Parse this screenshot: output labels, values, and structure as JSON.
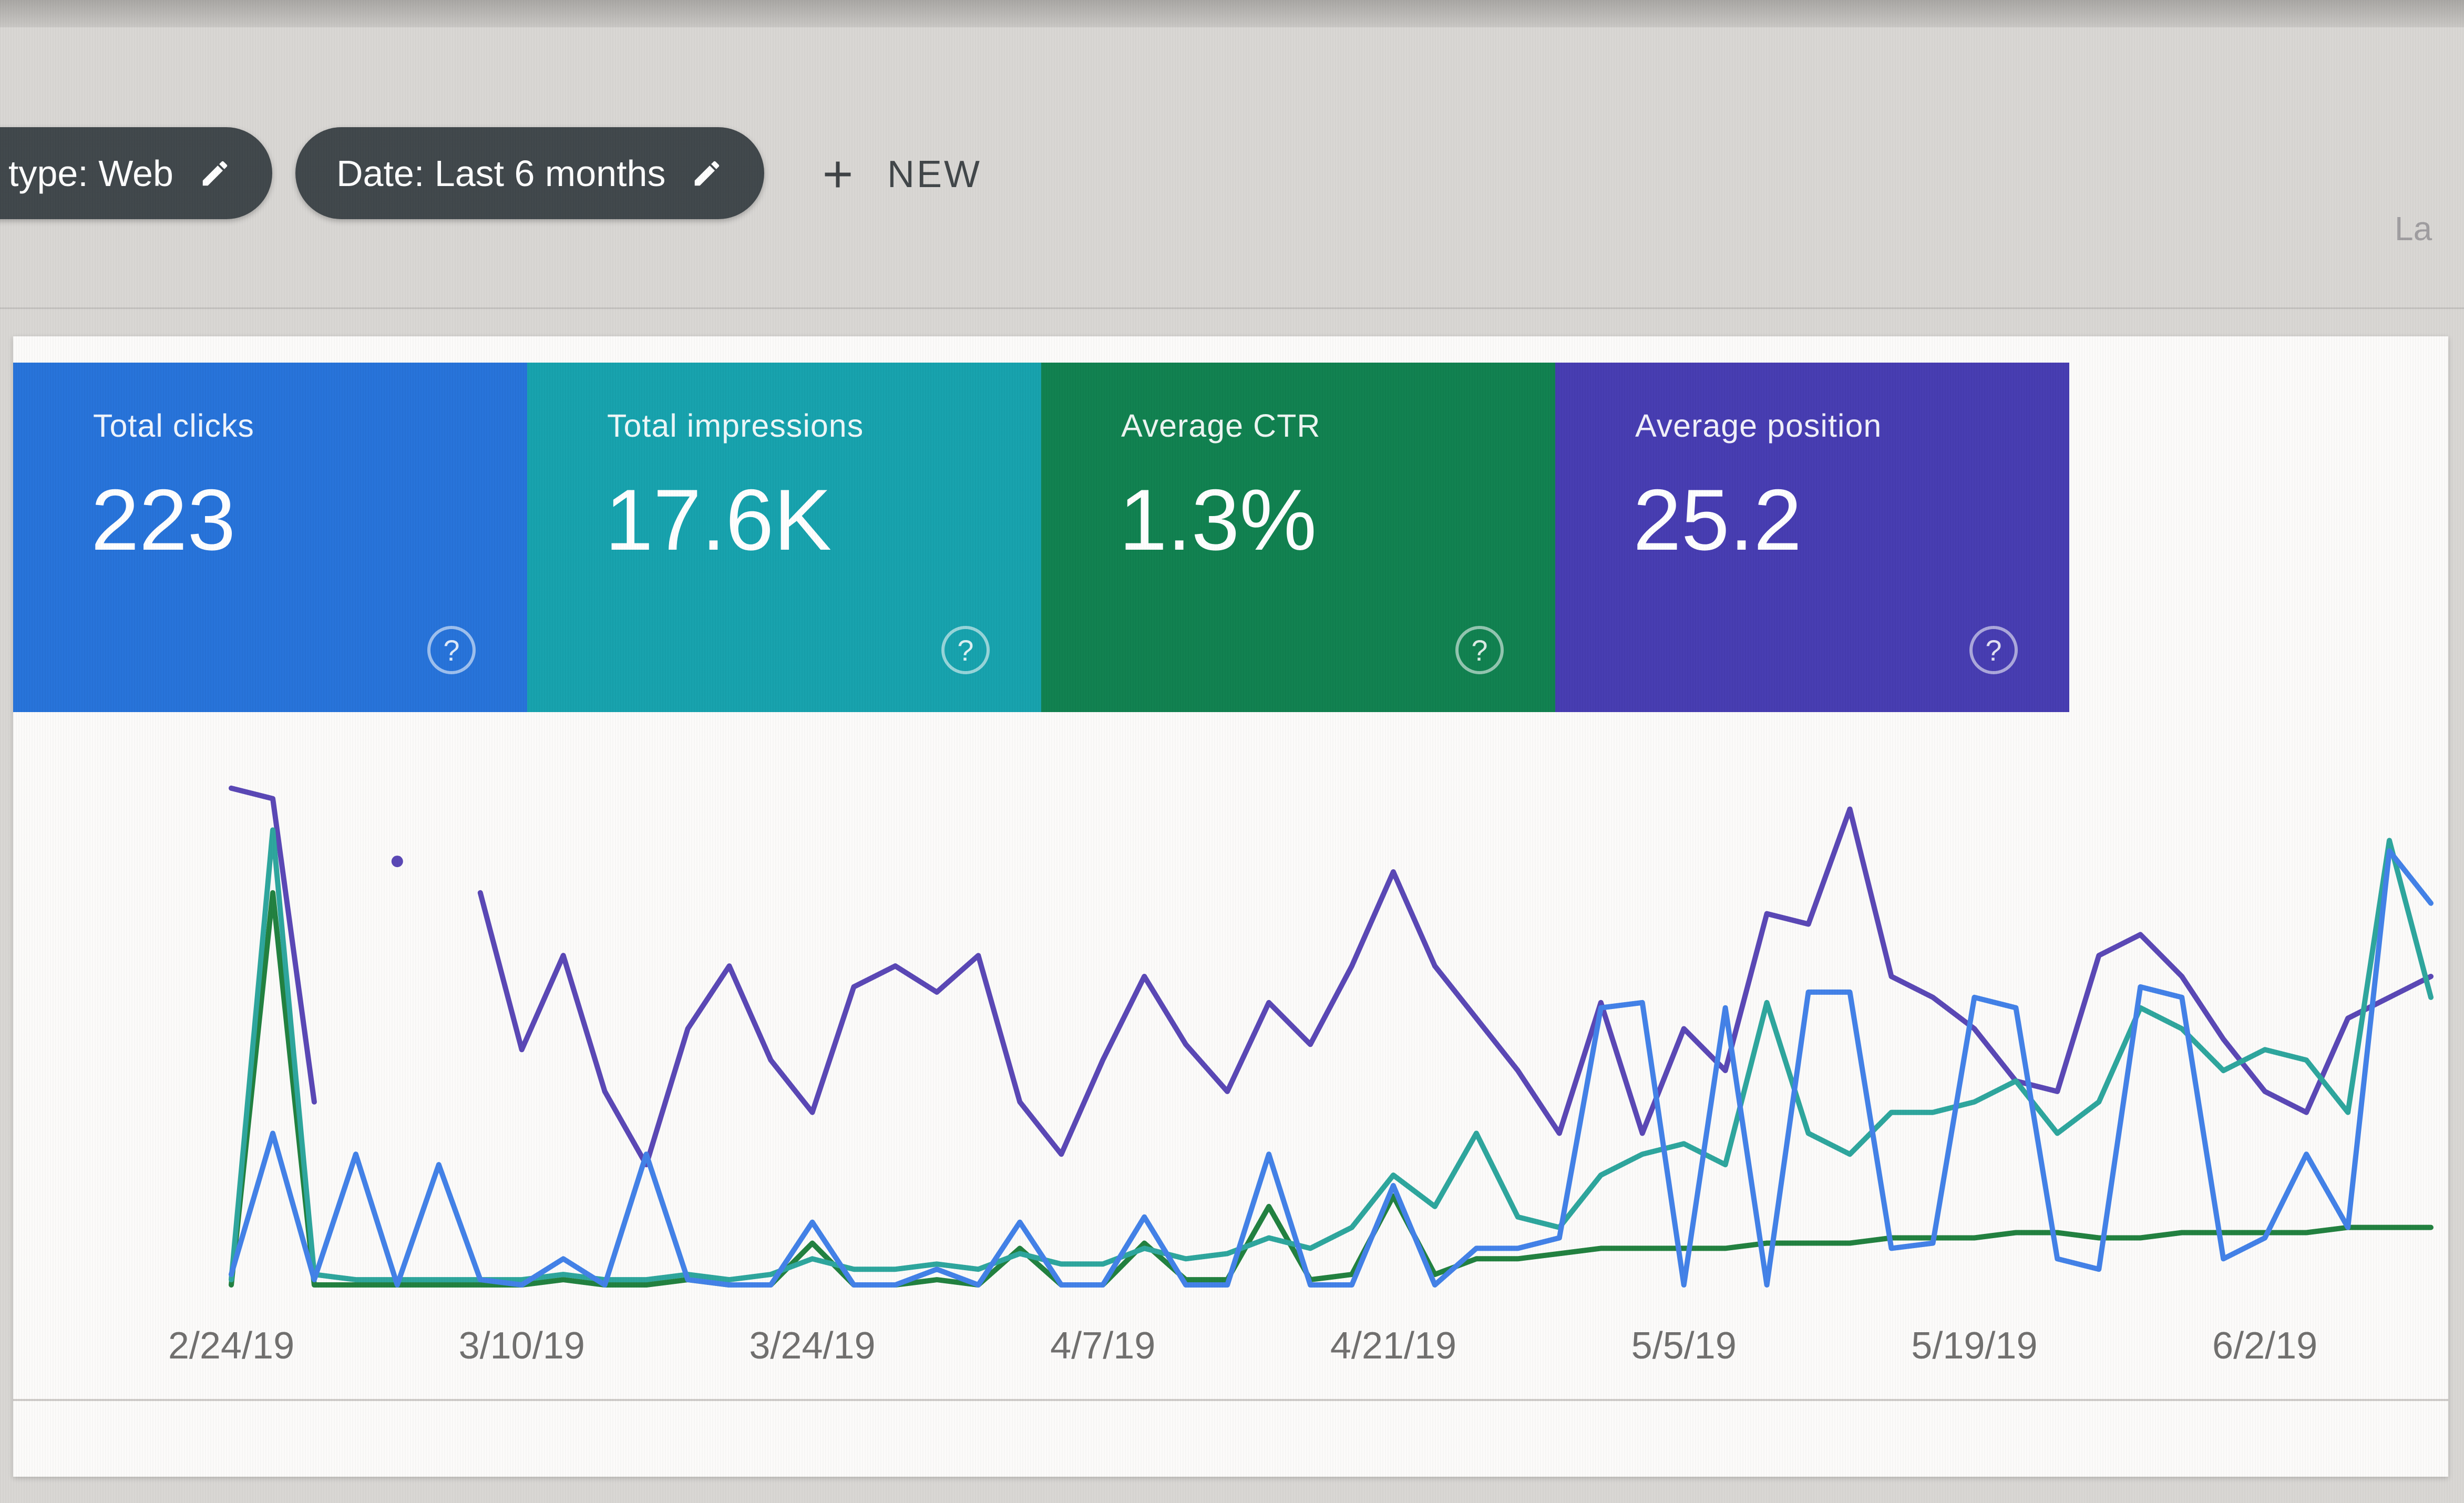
{
  "window": {
    "top_right_clipped_text": "La"
  },
  "filters": {
    "search_type_chip": {
      "label": "type: Web"
    },
    "date_chip": {
      "label": "Date: Last 6 months"
    },
    "new_button": {
      "label": "NEW"
    }
  },
  "help_icon_glyph": "?",
  "scorecards": [
    {
      "label": "Total clicks",
      "value": "223",
      "color": "#2471d9"
    },
    {
      "label": "Total impressions",
      "value": "17.6K",
      "color": "#14a1ac"
    },
    {
      "label": "Average CTR",
      "value": "1.3%",
      "color": "#0d7f4e"
    },
    {
      "label": "Average position",
      "value": "25.2",
      "color": "#443ab0"
    }
  ],
  "chart_data": {
    "type": "line",
    "title": "",
    "xlabel": "",
    "ylabel": "",
    "grid": false,
    "legend_position": "none",
    "y_axis_note": "no visible y-axis labels; series values given as plotted height in % of chart height",
    "x_start_label": "2/24/19",
    "x_tick_labels": [
      "2/24/19",
      "3/10/19",
      "3/24/19",
      "4/7/19",
      "4/21/19",
      "5/5/19",
      "5/19/19",
      "6/2/19"
    ],
    "x_tick_indices": [
      0,
      7,
      14,
      21,
      28,
      35,
      42,
      49
    ],
    "points_per_series": 54,
    "series": [
      {
        "name": "Average position",
        "color": "#5845b5",
        "plotted_heights_pct": [
          96,
          94,
          36,
          null,
          82,
          null,
          76,
          46,
          64,
          38,
          24,
          50,
          62,
          44,
          34,
          58,
          62,
          57,
          64,
          36,
          26,
          44,
          60,
          47,
          38,
          55,
          47,
          62,
          80,
          62,
          52,
          42,
          30,
          55,
          30,
          50,
          42,
          72,
          70,
          92,
          60,
          56,
          50,
          40,
          38,
          64,
          68,
          60,
          48,
          38,
          34,
          52,
          56,
          60
        ]
      },
      {
        "name": "Average CTR",
        "color": "#1f7f3d",
        "plotted_heights_pct": [
          1,
          76,
          1,
          1,
          1,
          1,
          1,
          1,
          2,
          1,
          1,
          2,
          1,
          1,
          9,
          1,
          1,
          2,
          1,
          8,
          1,
          1,
          9,
          2,
          2,
          16,
          2,
          3,
          18,
          3,
          6,
          6,
          7,
          8,
          8,
          8,
          8,
          9,
          9,
          9,
          10,
          10,
          10,
          11,
          11,
          10,
          10,
          11,
          11,
          11,
          11,
          12,
          12,
          12
        ]
      },
      {
        "name": "Total impressions",
        "color": "#2ba59c",
        "plotted_heights_pct": [
          2,
          88,
          3,
          2,
          2,
          2,
          2,
          2,
          3,
          2,
          2,
          3,
          2,
          3,
          6,
          4,
          4,
          5,
          4,
          7,
          5,
          5,
          8,
          6,
          7,
          10,
          8,
          12,
          22,
          16,
          30,
          14,
          12,
          22,
          26,
          28,
          24,
          55,
          30,
          26,
          34,
          34,
          36,
          40,
          30,
          36,
          54,
          50,
          42,
          46,
          44,
          34,
          86,
          56
        ]
      },
      {
        "name": "Total clicks",
        "color": "#4080e8",
        "plotted_heights_pct": [
          3,
          30,
          2,
          26,
          1,
          24,
          2,
          1,
          6,
          1,
          26,
          2,
          1,
          1,
          13,
          1,
          1,
          4,
          1,
          13,
          1,
          1,
          14,
          1,
          1,
          26,
          1,
          1,
          20,
          1,
          8,
          8,
          10,
          54,
          55,
          1,
          54,
          1,
          57,
          57,
          8,
          9,
          56,
          54,
          6,
          4,
          58,
          56,
          6,
          10,
          26,
          12,
          84,
          74
        ]
      }
    ]
  }
}
